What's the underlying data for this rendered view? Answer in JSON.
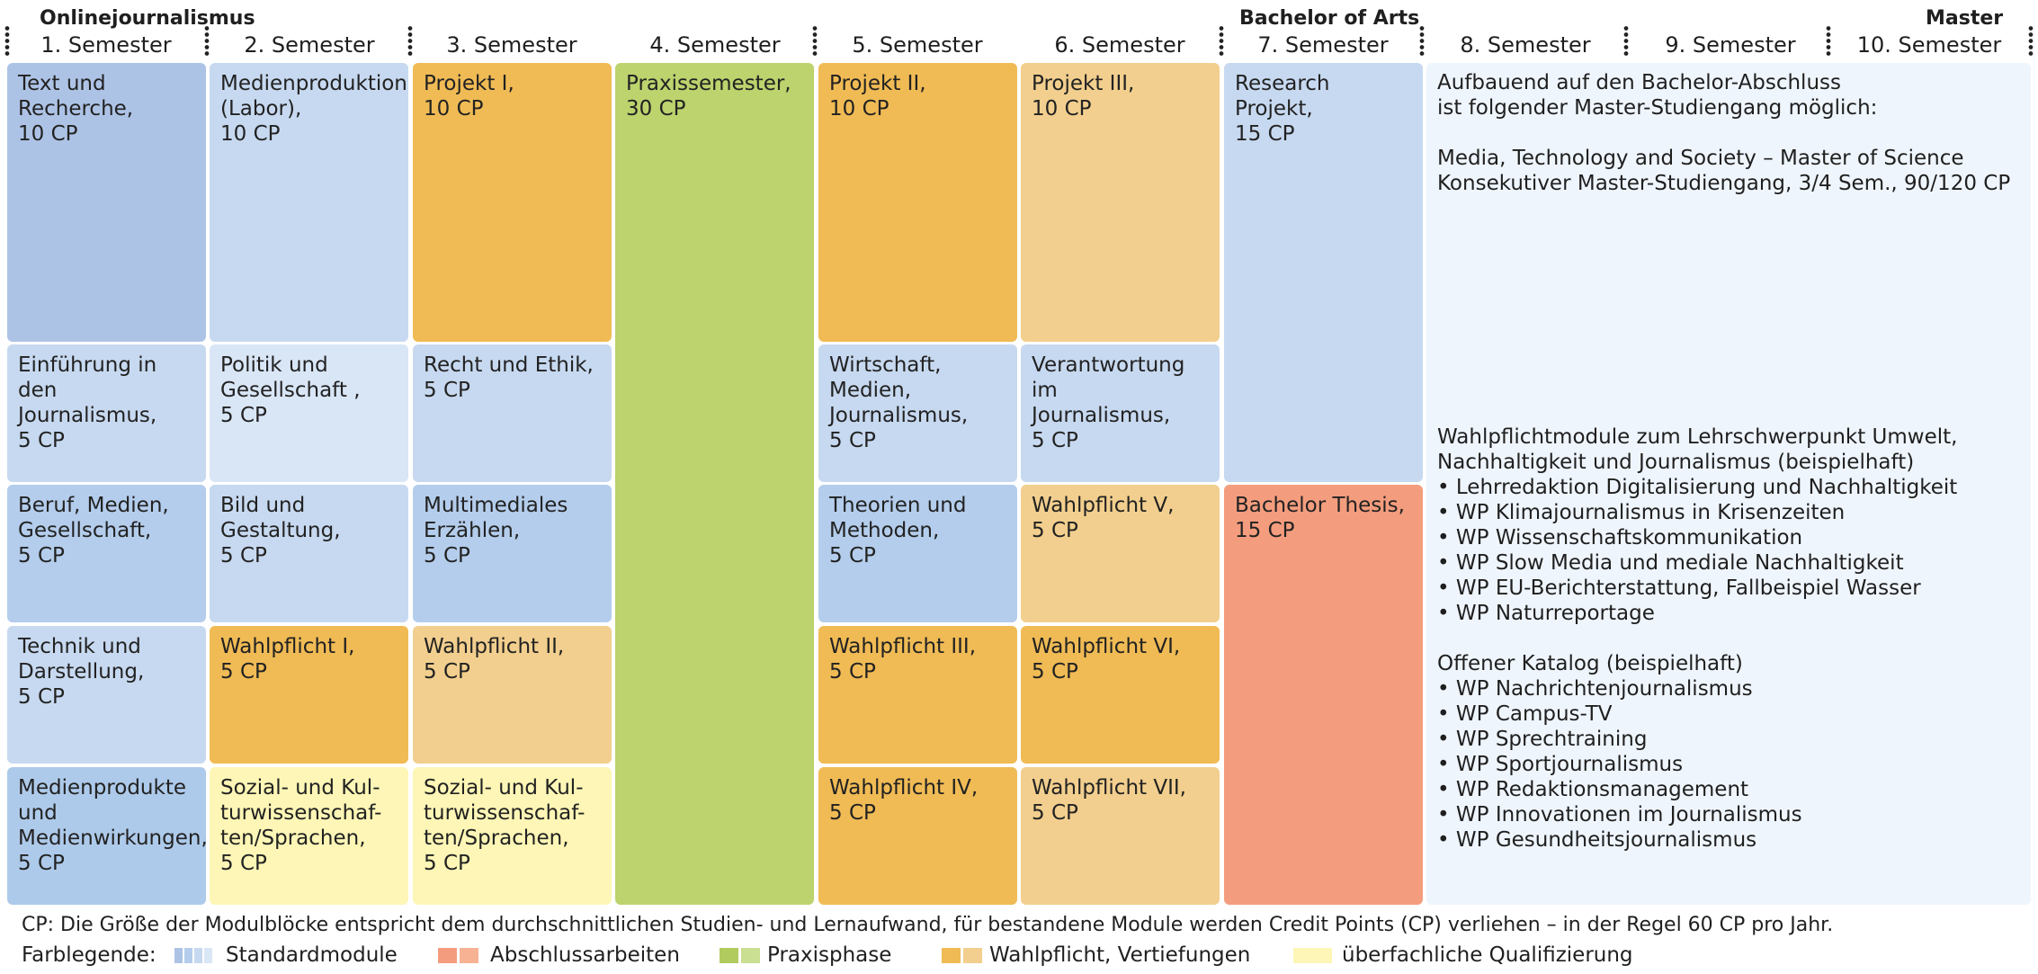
{
  "header": {
    "program_left": "Onlinejournalismus",
    "program_bachelor": "Bachelor of Arts",
    "program_master": "Master",
    "semesters": [
      "1. Semester",
      "2. Semester",
      "3. Semester",
      "4. Semester",
      "5. Semester",
      "6. Semester",
      "7. Semester",
      "8. Semester",
      "9. Semester",
      "10. Semester"
    ]
  },
  "modules": {
    "s1": [
      "Text und\nRecherche,\n10 CP",
      "Einführung in den\nJournalismus,\n5 CP",
      "Beruf, Medien,\nGesellschaft,\n5 CP",
      " Technik und\n Darstellung,\n 5 CP",
      "Medienprodukte\nund\nMedienwirkungen,\n5 CP"
    ],
    "s2": [
      "Medienproduktion\n(Labor),\n10 CP",
      "Politik und\nGesellschaft ,\n5 CP",
      "Bild und\nGestaltung,\n5 CP",
      "Wahlpflicht I,\n5 CP",
      "Sozial- und Kul-\nturwissenschaf-\nten/Sprachen,\n5 CP"
    ],
    "s3": [
      "Projekt I,\n10 CP",
      "Recht und Ethik,\n5 CP",
      "Multimediales\nErzählen,\n5 CP",
      "Wahlpflicht II,\n5 CP",
      "Sozial- und Kul-\nturwissenschaf-\nten/Sprachen,\n5 CP"
    ],
    "s4": [
      "Praxissemester,\n30 CP"
    ],
    "s5": [
      "Projekt II,\n10 CP",
      "Wirtschaft,\nMedien,\nJournalismus,\n5 CP",
      "Theorien und\nMethoden,\n5 CP",
      "Wahlpflicht III,\n5 CP",
      "Wahlpflicht IV,\n5 CP"
    ],
    "s6": [
      "Projekt III,\n10 CP",
      "Verantwortung im\nJournalismus,\n5 CP",
      "Wahlpflicht V,\n5 CP",
      "Wahlpflicht VI,\n5 CP",
      "Wahlpflicht VII,\n5 CP"
    ],
    "s7": [
      "Research Projekt,\n15 CP",
      "Bachelor Thesis,\n15 CP"
    ]
  },
  "master_info": {
    "intro": "Aufbauend auf den Bachelor-Abschluss\nist folgender Master-Studiengang möglich:\n\nMedia, Technology and Society – Master of Science\nKonsekutiver Master-Studiengang, 3/4 Sem., 90/120 CP",
    "wp_title": "Wahlpflichtmodule zum Lehrschwerpunkt Umwelt,\nNachhaltigkeit und Journalismus (beispielhaft)",
    "wp_items": [
      "Lehrredaktion Digitalisierung und Nachhaltigkeit",
      "WP Klimajournalismus in Krisenzeiten",
      "WP Wissenschaftskommunikation",
      "WP Slow Media und mediale Nachhaltigkeit",
      "WP EU-Berichterstattung, Fallbeispiel Wasser",
      "WP Naturreportage"
    ],
    "catalog_title": "Offener Katalog (beispielhaft)",
    "catalog_items": [
      "WP Nachrichtenjournalismus",
      "WP Campus-TV",
      "WP Sprechtraining",
      "WP Sportjournalismus",
      "WP Redaktionsmanagement",
      "WP Innovationen im Journalismus",
      "WP Gesundheitsjournalismus"
    ]
  },
  "footer": {
    "note": "CP: Die Größe der Modulblöcke entspricht dem durchschnittlichen Studien- und Lernaufwand, für bestandene Module werden Credit Points (CP) verliehen – in der Regel 60 CP pro Jahr.",
    "legend_label": "Farblegende:",
    "legend": [
      "Standardmodule",
      "Abschlussarbeiten",
      "Praxisphase",
      "Wahlpflicht, Vertiefungen",
      "überfachliche Qualifizierung"
    ]
  },
  "colors": {
    "standard": "#c7d9f0",
    "thesis": "#f49d7e",
    "practice": "#bcd36e",
    "elective": "#f0bb55",
    "general": "#fdf6b6"
  }
}
